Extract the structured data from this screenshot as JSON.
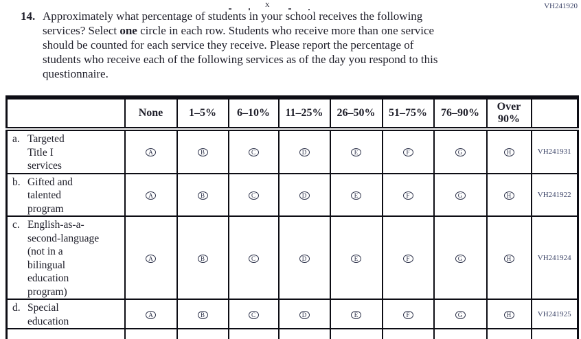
{
  "page_code": "VH241920",
  "crop_artifact": "x",
  "question": {
    "number": "14.",
    "lines": [
      {
        "text": "Approximately what percentage of students in your school receives the following"
      },
      {
        "pre": "services? Select ",
        "bold": "one",
        "post": " circle in each row. Students who receive more than one service"
      },
      {
        "text": "should be counted for each service they receive. Please report the percentage of"
      },
      {
        "text": "students who receive each of the following services as of the day you respond to this"
      },
      {
        "text": "questionnaire."
      }
    ]
  },
  "table": {
    "column_headers": [
      "None",
      "1–5%",
      "6–10%",
      "11–25%",
      "26–50%",
      "51–75%",
      "76–90%",
      "Over 90%"
    ],
    "option_letters": [
      "A",
      "B",
      "C",
      "D",
      "E",
      "F",
      "G",
      "H"
    ],
    "rows": [
      {
        "letter": "a.",
        "label_lines": [
          "Targeted",
          "Title I",
          "services"
        ],
        "code": "VH241931"
      },
      {
        "letter": "b.",
        "label_lines": [
          "Gifted and",
          "talented",
          "program"
        ],
        "code": "VH241922"
      },
      {
        "letter": "c.",
        "label_lines": [
          "English-as-a-",
          "second-language",
          "(not in a",
          "bilingual",
          "education",
          "program)"
        ],
        "code": "VH241924"
      },
      {
        "letter": "d.",
        "label_lines": [
          "Special",
          "education"
        ],
        "code": "VH241925"
      }
    ]
  }
}
